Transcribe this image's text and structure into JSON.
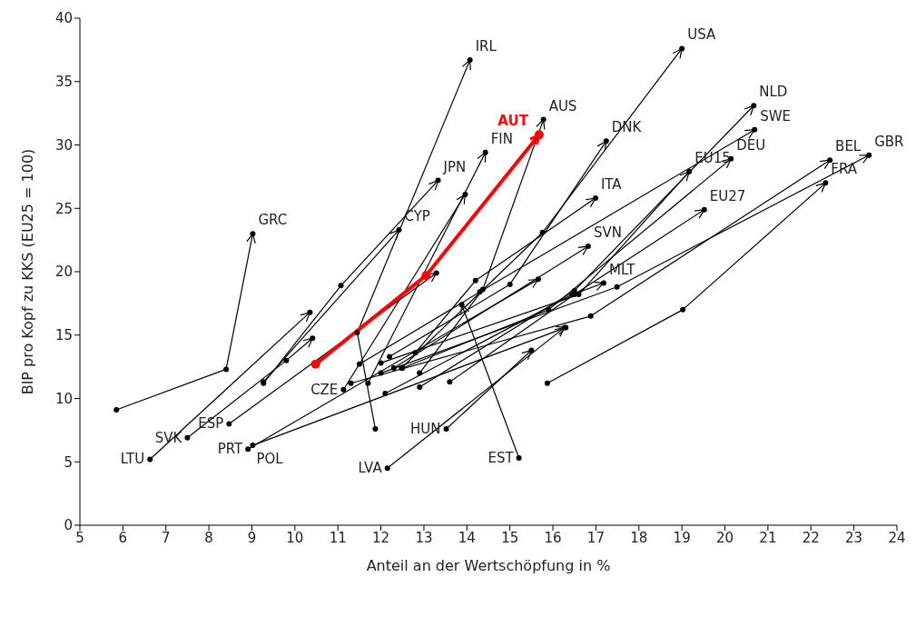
{
  "chart_data": {
    "type": "line",
    "xlabel": "Anteil an der Wertschöpfung in %",
    "ylabel": "BIP pro Kopf zu KKS (EU25 = 100)",
    "xlim": [
      5,
      24
    ],
    "xticks": [
      5,
      6,
      7,
      8,
      9,
      10,
      11,
      12,
      13,
      14,
      15,
      16,
      17,
      18,
      19,
      20,
      21,
      22,
      23,
      24
    ],
    "ylim": [
      0,
      40
    ],
    "yticks": [
      0,
      5,
      10,
      15,
      20,
      25,
      30,
      35,
      40
    ],
    "grid": false,
    "legend": false,
    "marker": "circle",
    "line_style": "solid",
    "series": [
      {
        "color": "#000000",
        "x": [
          5.85,
          8.4,
          9.02
        ],
        "values": [
          9.1,
          12.3,
          23.0
        ]
      },
      {
        "color": "#000000",
        "x": [
          11.87,
          11.45,
          14.07
        ],
        "values": [
          7.6,
          15.2,
          36.7
        ]
      },
      {
        "color": "#000000",
        "x": [
          12.48,
          15.76,
          19.0
        ],
        "values": [
          12.4,
          23.1,
          37.6
        ]
      },
      {
        "color": "#000000",
        "x": [
          12.9,
          14.37,
          15.78
        ],
        "values": [
          12.0,
          18.6,
          32.0
        ]
      },
      {
        "color": "#000000",
        "x": [
          11.7,
          14.43
        ],
        "values": [
          11.2,
          29.4
        ]
      },
      {
        "color": "#000000",
        "x": [
          9.27,
          11.07,
          13.33
        ],
        "values": [
          11.2,
          18.9,
          27.2
        ]
      },
      {
        "color": "#000000",
        "x": [
          9.27,
          12.42
        ],
        "values": [
          11.3,
          23.3
        ]
      },
      {
        "color": "#000000",
        "x": [
          6.63,
          10.35
        ],
        "values": [
          5.2,
          16.8
        ]
      },
      {
        "color": "#000000",
        "x": [
          7.5,
          9.8,
          10.41
        ],
        "values": [
          6.9,
          13.0,
          14.75
        ]
      },
      {
        "color": "#000000",
        "x": [
          8.47,
          13.29
        ],
        "values": [
          8.0,
          19.9
        ]
      },
      {
        "color": "#000000",
        "x": [
          8.91,
          15.66
        ],
        "values": [
          6.0,
          19.4
        ]
      },
      {
        "color": "#000000",
        "x": [
          9.02,
          16.3
        ],
        "values": [
          6.3,
          15.6
        ]
      },
      {
        "color": "#000000",
        "x": [
          11.13,
          13.96
        ],
        "values": [
          10.7,
          26.1
        ]
      },
      {
        "color": "#000000",
        "x": [
          13.52,
          15.5
        ],
        "values": [
          7.6,
          13.8
        ]
      },
      {
        "color": "#000000",
        "x": [
          12.15,
          16.27
        ],
        "values": [
          4.5,
          15.6
        ]
      },
      {
        "color": "#000000",
        "x": [
          15.21,
          13.88
        ],
        "values": [
          5.3,
          17.4
        ]
      },
      {
        "color": "#000000",
        "x": [
          15.87,
          19.02,
          22.34
        ],
        "values": [
          11.2,
          17.0,
          27.0
        ]
      },
      {
        "color": "#000000",
        "x": [
          12.0,
          17.49,
          23.35
        ],
        "values": [
          12.0,
          18.8,
          29.2
        ]
      },
      {
        "color": "#000000",
        "x": [
          11.3,
          16.88,
          22.44
        ],
        "values": [
          11.2,
          16.5,
          28.8
        ]
      },
      {
        "color": "#000000",
        "x": [
          13.6,
          16.5,
          19.52
        ],
        "values": [
          11.3,
          18.2,
          24.9
        ]
      },
      {
        "color": "#000000",
        "x": [
          12.5,
          15.9,
          20.14
        ],
        "values": [
          12.4,
          17.0,
          28.9
        ]
      },
      {
        "color": "#000000",
        "x": [
          12.0,
          16.6,
          19.17
        ],
        "values": [
          12.8,
          18.2,
          27.9
        ]
      },
      {
        "color": "#000000",
        "x": [
          11.5,
          14.3,
          20.69
        ],
        "values": [
          12.7,
          18.4,
          31.2
        ]
      },
      {
        "color": "#000000",
        "x": [
          12.9,
          16.5,
          20.67
        ],
        "values": [
          10.9,
          18.5,
          33.1
        ]
      },
      {
        "color": "#000000",
        "x": [
          12.2,
          15.0,
          17.24
        ],
        "values": [
          13.3,
          19.0,
          30.3
        ]
      },
      {
        "color": "#000000",
        "x": [
          12.8,
          14.2,
          16.99
        ],
        "values": [
          13.6,
          19.3,
          25.8
        ]
      },
      {
        "color": "#000000",
        "x": [
          12.3,
          16.82
        ],
        "values": [
          12.4,
          22.0
        ]
      },
      {
        "color": "#000000",
        "x": [
          12.1,
          16.45,
          17.18
        ],
        "values": [
          10.4,
          18.2,
          19.1
        ]
      },
      {
        "color": "#ff0000",
        "x": [
          10.48,
          13.05,
          15.68
        ],
        "values": [
          12.7,
          19.7,
          30.8
        ]
      }
    ],
    "annotations": [
      {
        "text": "GRC",
        "x": 9.02,
        "y": 23.0
      },
      {
        "text": "IRL",
        "x": 14.07,
        "y": 36.7
      },
      {
        "text": "USA",
        "x": 19.0,
        "y": 37.6
      },
      {
        "text": "AUS",
        "x": 15.78,
        "y": 32.0
      },
      {
        "text": "FIN",
        "x": 14.43,
        "y": 29.4
      },
      {
        "text": "JPN",
        "x": 13.33,
        "y": 27.2
      },
      {
        "text": "CYP",
        "x": 12.42,
        "y": 23.3
      },
      {
        "text": "LTU",
        "x": 6.63,
        "y": 5.2
      },
      {
        "text": "SVK",
        "x": 7.5,
        "y": 6.9
      },
      {
        "text": "ESP",
        "x": 8.47,
        "y": 8.0
      },
      {
        "text": "PRT",
        "x": 8.91,
        "y": 6.0
      },
      {
        "text": "POL",
        "x": 9.02,
        "y": 6.3
      },
      {
        "text": "CZE",
        "x": 11.13,
        "y": 10.7
      },
      {
        "text": "HUN",
        "x": 13.52,
        "y": 7.6
      },
      {
        "text": "LVA",
        "x": 12.15,
        "y": 4.5
      },
      {
        "text": "EST",
        "x": 15.21,
        "y": 5.3
      },
      {
        "text": "FRA",
        "x": 22.34,
        "y": 27.0
      },
      {
        "text": "GBR",
        "x": 23.35,
        "y": 29.2
      },
      {
        "text": "BEL",
        "x": 22.44,
        "y": 28.8
      },
      {
        "text": "EU27",
        "x": 19.52,
        "y": 24.9
      },
      {
        "text": "DEU",
        "x": 20.14,
        "y": 28.9
      },
      {
        "text": "EU15",
        "x": 19.17,
        "y": 27.9
      },
      {
        "text": "SWE",
        "x": 20.69,
        "y": 31.2
      },
      {
        "text": "NLD",
        "x": 20.67,
        "y": 33.1
      },
      {
        "text": "DNK",
        "x": 17.24,
        "y": 30.3
      },
      {
        "text": "ITA",
        "x": 16.99,
        "y": 25.8
      },
      {
        "text": "SVN",
        "x": 16.82,
        "y": 22.0
      },
      {
        "text": "MLT",
        "x": 17.18,
        "y": 19.1
      },
      {
        "text": "AUT",
        "x": 15.68,
        "y": 30.8
      }
    ]
  }
}
